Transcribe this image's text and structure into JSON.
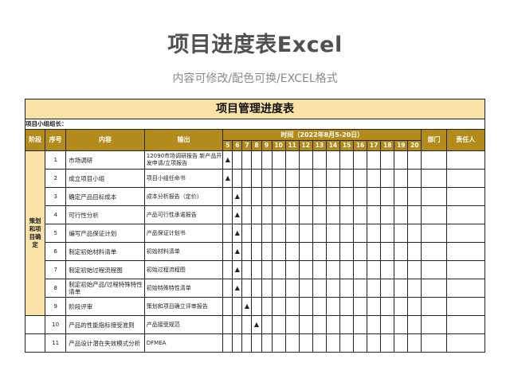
{
  "page": {
    "title": "项目进度表Excel",
    "subtitle": "内容可修改/配色可换/EXCEL格式"
  },
  "sheet": {
    "title": "项目管理进度表",
    "leader_label": "项目小组组长：",
    "headers": {
      "phase": "阶段",
      "no": "序号",
      "content": "内容",
      "output": "输出",
      "time": "时间（2022年8月5-20日）",
      "dept": "部门",
      "owner": "责任人"
    },
    "days": [
      "5",
      "6",
      "7",
      "8",
      "9",
      "10",
      "11",
      "12",
      "13",
      "14",
      "15",
      "16",
      "17",
      "18",
      "19",
      "20"
    ],
    "marker": "▲",
    "phase1": "策划和项目确定",
    "rows": [
      {
        "no": "1",
        "content": "市场调研",
        "output": "12090市场调研报告\n新产品开发申请/立项报告",
        "mark_day": 0
      },
      {
        "no": "2",
        "content": "成立项目小组",
        "output": "项目小组任命书",
        "mark_day": 0
      },
      {
        "no": "3",
        "content": "确定产品目标成本",
        "output": "成本分析报告（定价）",
        "mark_day": 1
      },
      {
        "no": "4",
        "content": "可行性分析",
        "output": "产品可行性承诺报告",
        "mark_day": 1
      },
      {
        "no": "5",
        "content": "编写产品保证计划",
        "output": "产品保证计划书",
        "mark_day": 1
      },
      {
        "no": "6",
        "content": "制定初始材料清单",
        "output": "初始材料清单",
        "mark_day": 1
      },
      {
        "no": "7",
        "content": "制定初始过程流程图",
        "output": "初始过程流程图",
        "mark_day": 1
      },
      {
        "no": "8",
        "content": "制定初始产品/过程特殊特性清单",
        "output": "初始特殊特性清单",
        "mark_day": 1
      },
      {
        "no": "9",
        "content": "阶段评审",
        "output": "策划和项目确立评审报告",
        "mark_day": 2
      },
      {
        "no": "10",
        "content": "产品的性能指标接受准则",
        "output": "产品接受规范",
        "mark_day": 3
      },
      {
        "no": "11",
        "content": "产品设计潜在失效模式分析",
        "output": "DFMEA",
        "mark_day": -1
      }
    ]
  }
}
